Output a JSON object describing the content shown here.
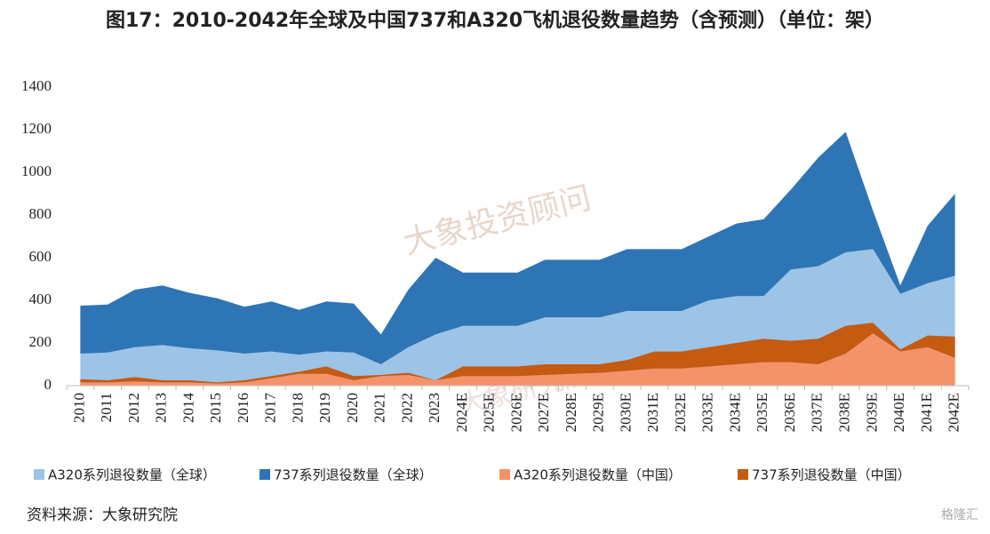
{
  "chart_data": {
    "type": "area",
    "title": "图17：2010-2042年全球及中国737和A320飞机退役数量趋势（含预测）（单位：架）",
    "source": "资料来源：大象研究院",
    "watermarks": [
      "大象投资顾问",
      "大象研究院",
      "格隆汇"
    ],
    "categories": [
      "2010",
      "2011",
      "2012",
      "2013",
      "2014",
      "2015",
      "2016",
      "2017",
      "2018",
      "2019",
      "2020",
      "2021",
      "2022",
      "2023",
      "2024E",
      "2025E",
      "2026E",
      "2027E",
      "2028E",
      "2029E",
      "2030E",
      "2031E",
      "2032E",
      "2033E",
      "2034E",
      "2035E",
      "2036E",
      "2037E",
      "2038E",
      "2039E",
      "2040E",
      "2041E",
      "2042E"
    ],
    "series": [
      {
        "name": "A320系列退役数量（全球）",
        "color": "#9dc3e6",
        "values": [
          150,
          155,
          180,
          190,
          175,
          165,
          150,
          160,
          145,
          160,
          155,
          100,
          180,
          240,
          280,
          280,
          280,
          320,
          320,
          320,
          350,
          350,
          350,
          400,
          420,
          420,
          545,
          560,
          625,
          640,
          430,
          480,
          515
        ]
      },
      {
        "name": "737系列退役数量（全球）",
        "color": "#2e75b6",
        "values": [
          225,
          225,
          270,
          280,
          260,
          245,
          220,
          235,
          210,
          235,
          230,
          140,
          270,
          360,
          250,
          250,
          250,
          270,
          270,
          270,
          290,
          290,
          290,
          300,
          340,
          360,
          375,
          510,
          565,
          180,
          40,
          270,
          385
        ]
      },
      {
        "name": "A320系列退役数量（中国）",
        "color": "#f4936a",
        "values": [
          15,
          15,
          20,
          15,
          15,
          10,
          15,
          35,
          55,
          55,
          25,
          45,
          50,
          25,
          45,
          45,
          45,
          50,
          55,
          60,
          70,
          80,
          80,
          90,
          100,
          110,
          110,
          100,
          150,
          245,
          160,
          180,
          130
        ]
      },
      {
        "name": "737系列退役数量（中国）",
        "color": "#c55a11",
        "values": [
          15,
          10,
          20,
          10,
          10,
          5,
          10,
          10,
          10,
          35,
          20,
          5,
          10,
          0,
          45,
          45,
          45,
          50,
          45,
          40,
          50,
          80,
          80,
          90,
          100,
          110,
          100,
          120,
          130,
          50,
          10,
          55,
          100
        ]
      }
    ],
    "ylim": [
      0,
      1400
    ],
    "yticks": [
      0,
      200,
      400,
      600,
      800,
      1000,
      1200,
      1400
    ],
    "grid": false
  }
}
